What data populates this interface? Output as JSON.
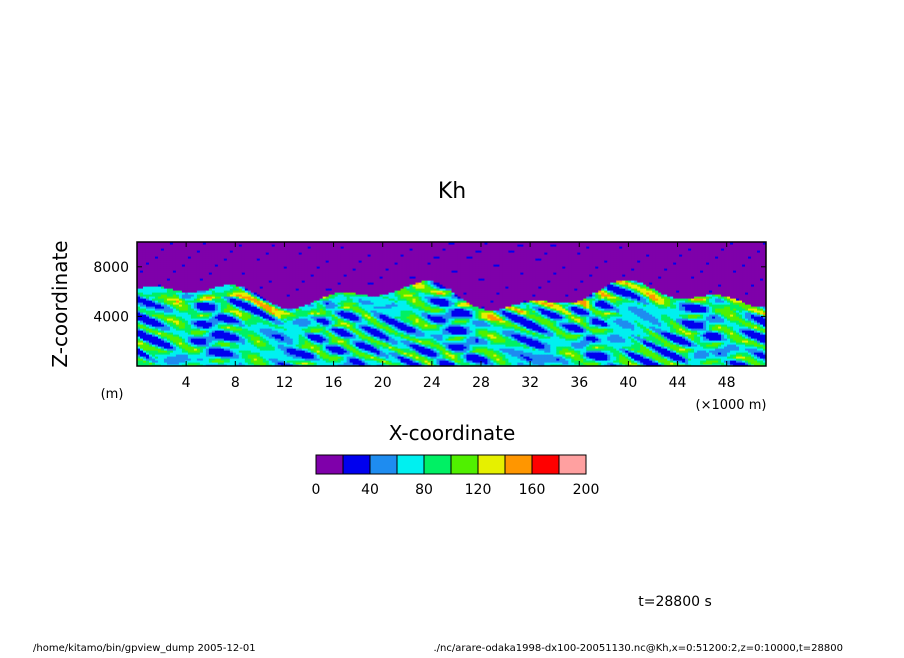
{
  "chart_data": {
    "type": "heatmap",
    "title": "Kh",
    "xlabel": "X-coordinate",
    "ylabel": "Z-coordinate",
    "x_unit": "(×1000 m)",
    "y_unit": "(m)",
    "xlim": [
      0,
      51.2
    ],
    "ylim": [
      0,
      10000
    ],
    "x_ticks": [
      4,
      8,
      12,
      16,
      20,
      24,
      28,
      32,
      36,
      40,
      44,
      48
    ],
    "y_ticks": [
      4000,
      8000
    ],
    "colorbar": {
      "levels": [
        0,
        20,
        40,
        60,
        80,
        100,
        120,
        140,
        160,
        180,
        200
      ],
      "tick_labels": [
        0,
        40,
        80,
        120,
        160,
        200
      ],
      "colors": [
        "#7f00aa",
        "#0000ee",
        "#1e8cf0",
        "#00f0f0",
        "#00f064",
        "#50f000",
        "#e6f000",
        "#ff9600",
        "#ff0000",
        "#ffa0a0"
      ]
    },
    "time_label": "t=28800 s"
  },
  "footer": {
    "left": "/home/kitamo/bin/gpview_dump  2005-12-01",
    "right": "./nc/arare-odaka1998-dx100-20051130.nc@Kh,x=0:51200:2,z=0:10000,t=28800"
  }
}
